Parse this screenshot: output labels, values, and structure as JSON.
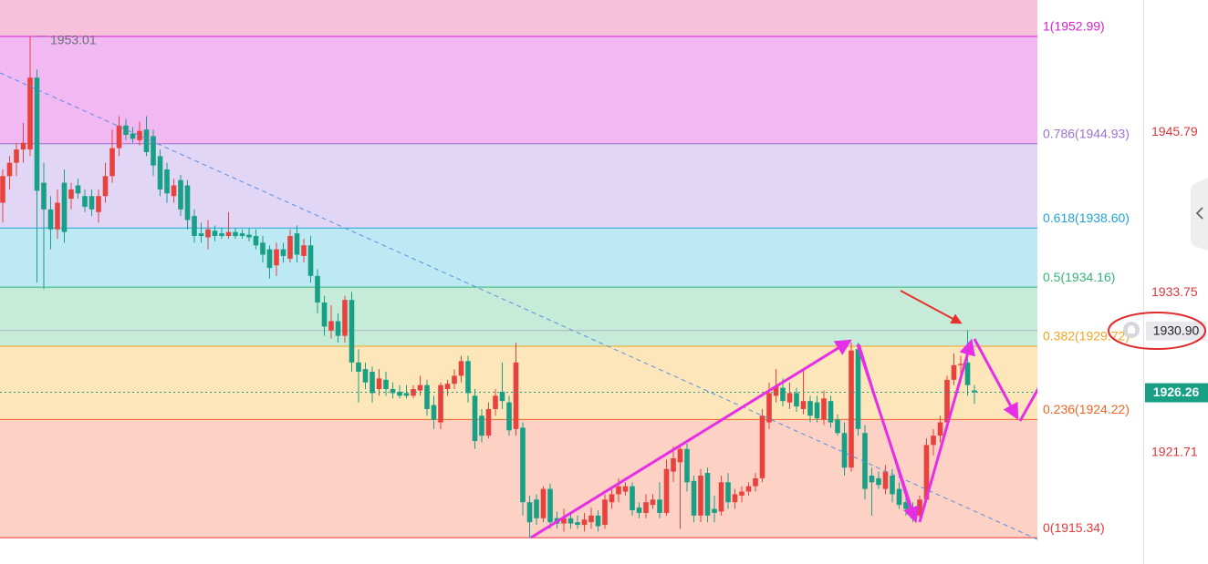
{
  "chart_data": {
    "type": "candlestick",
    "ylim": [
      1913.36,
      1955.73
    ],
    "yticks": [
      1921.71,
      1933.75,
      1945.79
    ],
    "up_color": "#e8423f",
    "down_color": "#17a085",
    "fill_above": "#f7c1dc",
    "fib_levels": [
      {
        "value": 1952.99,
        "label": "1(1952.99)",
        "color": "#d61fd6",
        "fill": "#f2b8f2"
      },
      {
        "value": 1944.93,
        "label": "0.786(1944.93)",
        "color": "#9b72d2",
        "fill": "#e2d6f6"
      },
      {
        "value": 1938.6,
        "label": "0.618(1938.60)",
        "color": "#22a3d6",
        "fill": "#bde9f5"
      },
      {
        "value": 1934.16,
        "label": "0.5(1934.16)",
        "color": "#35b577",
        "fill": "#c6ecd9"
      },
      {
        "value": 1929.72,
        "label": "0.382(1929.72)",
        "color": "#f2a51f",
        "fill": "#fde6ba"
      },
      {
        "value": 1924.22,
        "label": "0.236(1924.22)",
        "color": "#f06424",
        "fill": "#fdd1c3"
      },
      {
        "value": 1915.34,
        "label": "0(1915.34)",
        "color": "#e53935",
        "fill": null
      }
    ],
    "high_label": 1953.01,
    "last_price": 1926.26,
    "alert_price": {
      "value": 1930.9,
      "label": "1930.90"
    },
    "open": [
      1940.5,
      1942.5,
      1943.5,
      1944.5,
      1944.5,
      1949.9,
      1942,
      1940,
      1938.5,
      1942,
      1940.8,
      1941.8,
      1941,
      1941,
      1939.8,
      1941,
      1942.5,
      1944.6,
      1946.3,
      1945.7,
      1945.2,
      1946,
      1945.5,
      1944,
      1943,
      1941,
      1942.2,
      1941.8,
      1939.5,
      1938.2,
      1937.9,
      1938.4,
      1938.2,
      1938,
      1938.3,
      1938.2,
      1938.1,
      1938,
      1937.5,
      1937,
      1935.8,
      1937,
      1936.3,
      1938.2,
      1936.5,
      1937.3,
      1935,
      1933,
      1930.9,
      1931.6,
      1930.5,
      1933.2,
      1928.5,
      1928,
      1927.8,
      1926.5,
      1927.2,
      1926.5,
      1926.3,
      1926.2,
      1926,
      1926.4,
      1926.8,
      1925.3,
      1924,
      1926.5,
      1926.9,
      1927.5,
      1928.6,
      1926,
      1924.5,
      1923,
      1925,
      1926.3,
      1925.5,
      1923.5,
      1923.6,
      1918,
      1918.2,
      1916.8,
      1919,
      1916.8,
      1916.4,
      1916.8,
      1916.5,
      1916.3,
      1916.5,
      1917,
      1916.3,
      1918,
      1918.6,
      1918.8,
      1919.2,
      1917.6,
      1917.2,
      1917.8,
      1918.2,
      1917.2,
      1920.3,
      1921,
      1922,
      1919.6,
      1917,
      1920.2,
      1917.5,
      1917.3,
      1919.5,
      1918,
      1918.5,
      1918.8,
      1919.2,
      1919.8,
      1924,
      1926,
      1926.6,
      1925.5,
      1926.2,
      1925,
      1925.6,
      1925.5,
      1924.2,
      1925.6,
      1924.2,
      1923.2,
      1920.6,
      1929.5,
      1923.2,
      1920,
      1919.8,
      1919,
      1920,
      1919,
      1918,
      1917.5,
      1917,
      1918.2,
      1922.3,
      1923,
      1924,
      1927.2,
      1928.3,
      1928.5,
      1926.4
    ],
    "high": [
      1943,
      1944,
      1945,
      1946.5,
      1953.01,
      1950.5,
      1943.5,
      1941,
      1941.5,
      1943,
      1942,
      1942.3,
      1941.5,
      1941.5,
      1941.5,
      1943.5,
      1946,
      1947,
      1946.8,
      1946.2,
      1946.6,
      1947,
      1946,
      1944.5,
      1943.5,
      1942.3,
      1942.6,
      1942.2,
      1940,
      1939,
      1939.2,
      1938.8,
      1938.6,
      1939.8,
      1938.6,
      1938.5,
      1938.6,
      1938.5,
      1938,
      1937.3,
      1937.5,
      1937.5,
      1938.5,
      1938.8,
      1937.8,
      1938,
      1935.5,
      1933.5,
      1932.8,
      1932.2,
      1933.5,
      1933.8,
      1929.5,
      1928.5,
      1928.2,
      1928,
      1927.8,
      1927,
      1926.8,
      1926.8,
      1926.8,
      1927.5,
      1927.2,
      1926,
      1927,
      1927.2,
      1928,
      1929,
      1929,
      1926.5,
      1925,
      1925.5,
      1926.5,
      1928.5,
      1926,
      1930,
      1924,
      1918.5,
      1918.6,
      1919.2,
      1919.4,
      1917.3,
      1917.5,
      1917.2,
      1917,
      1917.2,
      1917.6,
      1917.4,
      1918.6,
      1919,
      1919.8,
      1919.5,
      1919.5,
      1918,
      1918.6,
      1918.6,
      1919.5,
      1921.2,
      1922.2,
      1922.3,
      1922.4,
      1920,
      1920.5,
      1920.6,
      1918.5,
      1920,
      1920.2,
      1919,
      1919.2,
      1919.5,
      1920.2,
      1925,
      1927,
      1928,
      1927.3,
      1927,
      1926.6,
      1928,
      1926,
      1926,
      1926.4,
      1926,
      1924.6,
      1924,
      1930,
      1930,
      1923.8,
      1920.6,
      1920.3,
      1920.8,
      1920.5,
      1919.5,
      1918.5,
      1918,
      1918.5,
      1922.8,
      1923.5,
      1924.5,
      1927.5,
      1929.2,
      1929,
      1930.9,
      1926.8
    ],
    "low": [
      1939,
      1941.5,
      1942.5,
      1943.5,
      1944,
      1934.5,
      1934,
      1937,
      1937.8,
      1937.5,
      1940,
      1940.8,
      1939.8,
      1939.5,
      1939,
      1940.5,
      1942,
      1944,
      1945.2,
      1945,
      1944.8,
      1944,
      1942.5,
      1941,
      1940.5,
      1940.5,
      1939.5,
      1938.5,
      1937.5,
      1937.5,
      1937,
      1937.6,
      1937.8,
      1937.8,
      1937.8,
      1937.8,
      1937.6,
      1937,
      1936,
      1934.8,
      1935,
      1936,
      1936,
      1936,
      1936,
      1934.5,
      1932.2,
      1930.5,
      1930.3,
      1930,
      1930,
      1927.8,
      1925.5,
      1926.5,
      1925.5,
      1926,
      1926,
      1925.8,
      1925.8,
      1925.8,
      1925.8,
      1926,
      1924.5,
      1923.5,
      1923.5,
      1926,
      1926.5,
      1927,
      1925.5,
      1922,
      1922.5,
      1922.8,
      1924.5,
      1925,
      1923,
      1923,
      1917,
      1915.34,
      1916.3,
      1916.5,
      1916,
      1916,
      1915.8,
      1916,
      1916,
      1915.8,
      1916,
      1915.8,
      1916,
      1917.5,
      1918,
      1918.5,
      1917,
      1916.8,
      1916.8,
      1917.5,
      1916.8,
      1917,
      1919.5,
      1916,
      1918.8,
      1916.5,
      1916.5,
      1916.5,
      1916.5,
      1917,
      1917.5,
      1917.5,
      1918,
      1918.5,
      1918.8,
      1919.5,
      1923.5,
      1925.5,
      1925.2,
      1925,
      1924.8,
      1924.6,
      1924,
      1924,
      1923.8,
      1923.6,
      1923,
      1920,
      1920.3,
      1923,
      1918.2,
      1917,
      1919,
      1918.6,
      1918,
      1917.5,
      1917,
      1916.5,
      1916.8,
      1918,
      1921.5,
      1922.5,
      1923.5,
      1926.8,
      1927,
      1926,
      1925.4
    ],
    "close": [
      1942.5,
      1943.5,
      1944.5,
      1945,
      1949.9,
      1941.4,
      1940,
      1938.5,
      1940.5,
      1938.3,
      1941.5,
      1941.2,
      1940.2,
      1940,
      1941,
      1942.5,
      1944.6,
      1946.3,
      1945.6,
      1945.3,
      1945.9,
      1944.3,
      1943.3,
      1941.5,
      1941.2,
      1941.8,
      1940,
      1939.2,
      1938,
      1938,
      1938.5,
      1938,
      1938,
      1938.3,
      1938,
      1938,
      1937.9,
      1937.3,
      1936.6,
      1935.6,
      1937,
      1936.5,
      1938,
      1936.6,
      1937.3,
      1935,
      1933,
      1931.2,
      1931.6,
      1930.5,
      1933.2,
      1928.5,
      1927.8,
      1927,
      1926.2,
      1927.3,
      1926.5,
      1926.2,
      1926,
      1926,
      1926.5,
      1926.8,
      1925,
      1924.2,
      1926.8,
      1926.9,
      1927.5,
      1928.6,
      1926.2,
      1922.6,
      1923,
      1925,
      1926,
      1925.6,
      1923.4,
      1928.5,
      1918,
      1916.5,
      1916.8,
      1919,
      1916.5,
      1916.4,
      1916.8,
      1916.4,
      1916.3,
      1916.7,
      1917,
      1916.2,
      1918.2,
      1918.6,
      1919.2,
      1919.2,
      1917.4,
      1917.2,
      1918,
      1918.2,
      1917.2,
      1920.5,
      1921.3,
      1922,
      1919.5,
      1917,
      1920,
      1917,
      1917.2,
      1919.5,
      1918,
      1918.6,
      1918.8,
      1919.2,
      1919.8,
      1924.5,
      1926.2,
      1926.7,
      1925.6,
      1926.2,
      1925.2,
      1925.6,
      1924.5,
      1924.3,
      1925.8,
      1924,
      1923.2,
      1920.6,
      1929.4,
      1923.5,
      1919,
      1919.5,
      1919.3,
      1920.3,
      1918.6,
      1917.8,
      1917.5,
      1916.8,
      1918.2,
      1922.3,
      1923,
      1924,
      1927.2,
      1928.3,
      1928.4,
      1926.8,
      1926.26
    ]
  }
}
